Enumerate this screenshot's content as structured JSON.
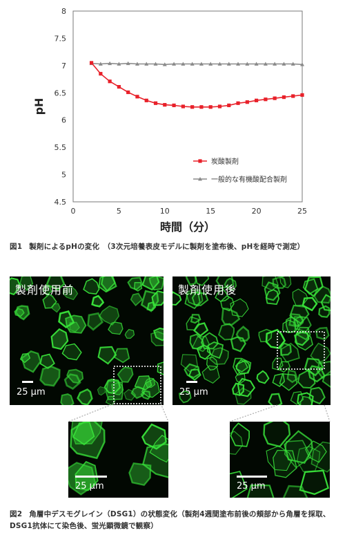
{
  "chart_data": {
    "type": "line",
    "xlabel": "時間（分）",
    "ylabel": "pH",
    "xlim": [
      0,
      25
    ],
    "ylim": [
      4.5,
      8
    ],
    "xticks": [
      0,
      5,
      10,
      15,
      20,
      25
    ],
    "yticks": [
      4.5,
      5,
      5.5,
      6,
      6.5,
      7,
      7.5,
      8
    ],
    "legend_position": "bottom-right",
    "series": [
      {
        "name": "炭酸製剤",
        "color": "#e8212a",
        "marker": "square",
        "x": [
          2,
          3,
          4,
          5,
          6,
          7,
          8,
          9,
          10,
          11,
          12,
          13,
          14,
          15,
          16,
          17,
          18,
          19,
          20,
          21,
          22,
          23,
          24,
          25
        ],
        "y": [
          7.05,
          6.85,
          6.71,
          6.61,
          6.51,
          6.43,
          6.36,
          6.31,
          6.28,
          6.27,
          6.25,
          6.24,
          6.24,
          6.24,
          6.25,
          6.27,
          6.31,
          6.33,
          6.36,
          6.38,
          6.4,
          6.42,
          6.44,
          6.46
        ]
      },
      {
        "name": "一般的な有機酸配合製剤",
        "color": "#8a8a8a",
        "marker": "triangle",
        "x": [
          2,
          3,
          4,
          5,
          6,
          7,
          8,
          9,
          10,
          11,
          12,
          13,
          14,
          15,
          16,
          17,
          18,
          19,
          20,
          21,
          22,
          23,
          24,
          25
        ],
        "y": [
          7.04,
          7.03,
          7.04,
          7.03,
          7.04,
          7.03,
          7.03,
          7.03,
          7.02,
          7.03,
          7.03,
          7.03,
          7.03,
          7.03,
          7.03,
          7.03,
          7.03,
          7.03,
          7.03,
          7.03,
          7.03,
          7.03,
          7.03,
          7.02
        ]
      }
    ]
  },
  "captions": {
    "fig1_num": "図1",
    "fig1_text": "製剤によるpHの変化　（3次元培養表皮モデルに製剤を塗布後、pHを経時で測定）",
    "fig2_num": "図2",
    "fig2_text": "角層中デスモグレイン（DSG1）の状態変化（製剤4週間塗布前後の頬部から角層を採取、DSG1抗体にて染色後、蛍光顕微鏡で観察）"
  },
  "panels": {
    "before_label": "製剤使用前",
    "after_label": "製剤使用後",
    "scale_label": "25 μm"
  },
  "colors": {
    "fluorescence": "#39e23a",
    "background": "#020802"
  }
}
